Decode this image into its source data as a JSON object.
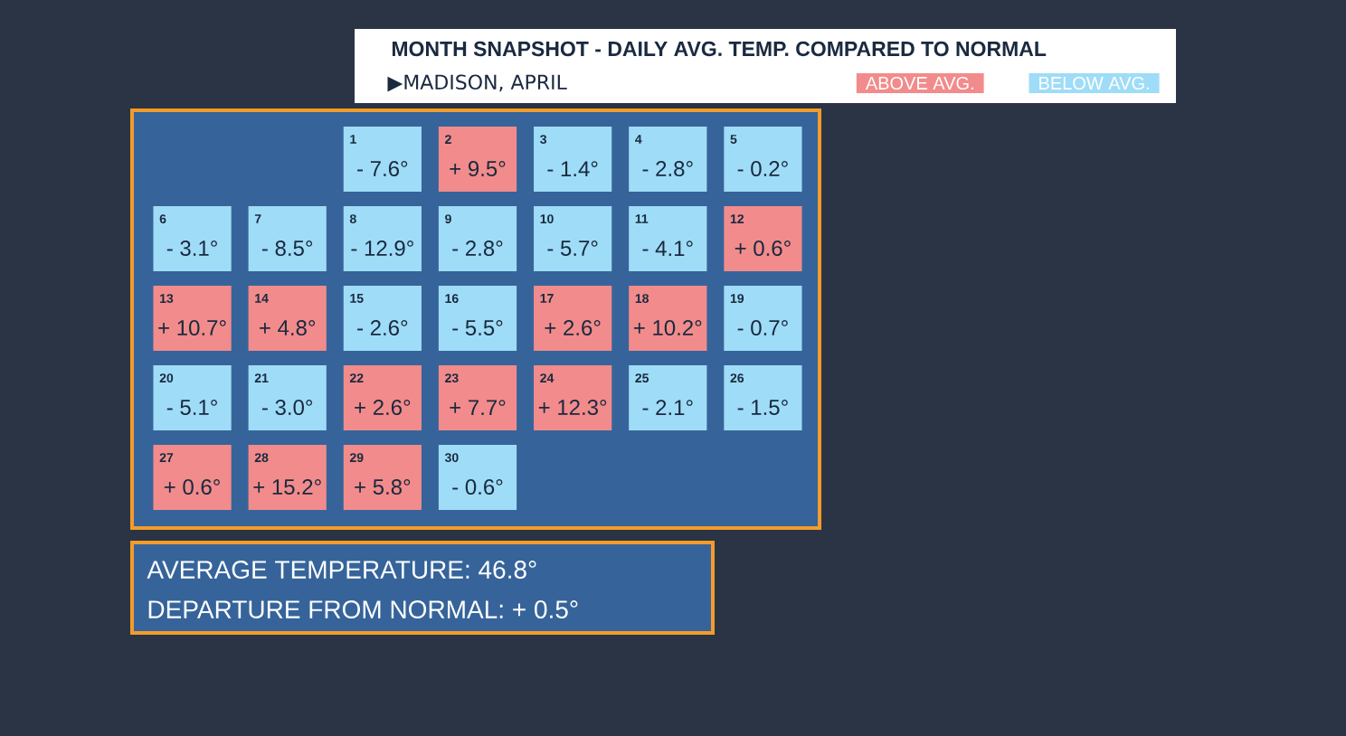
{
  "chart_data": {
    "type": "heatmap",
    "title": "MONTH SNAPSHOT - DAILY AVG. TEMP. COMPARED TO NORMAL",
    "subtitle": "▶MADISON, APRIL",
    "categories": [
      null,
      null,
      null,
      null,
      null,
      null,
      null
    ],
    "y_categories": [
      null,
      null,
      null,
      null,
      null
    ],
    "colors": [
      "#f28b8b",
      "#9fdcf7"
    ],
    "cells": [
      [
        null,
        null,
        -7.6,
        9.5,
        -1.4,
        -2.8,
        -0.2
      ],
      [
        -3.1,
        -8.5,
        -12.9,
        -2.8,
        -5.7,
        -4.1,
        0.6
      ],
      [
        10.7,
        4.8,
        -2.6,
        -5.5,
        2.6,
        10.2,
        -0.7
      ],
      [
        -5.1,
        -3.0,
        2.6,
        7.7,
        12.3,
        -2.1,
        -1.5
      ],
      [
        0.6,
        15.2,
        5.8,
        -0.6,
        null,
        null,
        null
      ]
    ],
    "cell_labels": [
      [
        null,
        null,
        "- 7.6°",
        "+ 9.5°",
        "- 1.4°",
        "- 2.8°",
        "- 0.2°"
      ],
      [
        "- 3.1°",
        "- 8.5°",
        "- 12.9°",
        "- 2.8°",
        "- 5.7°",
        "- 4.1°",
        "+ 0.6°"
      ],
      [
        "+ 10.7°",
        "+ 4.8°",
        "- 2.6°",
        "- 5.5°",
        "+ 2.6°",
        "+ 10.2°",
        "- 0.7°"
      ],
      [
        "- 5.1°",
        "- 3.0°",
        "+ 2.6°",
        "+ 7.7°",
        "+ 12.3°",
        "- 2.1°",
        "- 1.5°"
      ],
      [
        "+ 0.6°",
        "+ 15.2°",
        "+ 5.8°",
        "- 0.6°",
        null,
        null,
        null
      ]
    ],
    "annotations": [
      "1",
      "2",
      "3",
      "4",
      "5",
      "6",
      "7",
      "8",
      "9",
      "10",
      "11",
      "12",
      "13",
      "14",
      "15",
      "16",
      "17",
      "18",
      "19",
      "20",
      "21",
      "22",
      "23",
      "24",
      "25",
      "26",
      "27",
      "28",
      "29",
      "30",
      "ABOVE AVG.",
      "BELOW AVG.",
      "AVERAGE TEMPERATURE: 46.8°",
      "DEPARTURE FROM NORMAL: + 0.5°"
    ]
  }
}
